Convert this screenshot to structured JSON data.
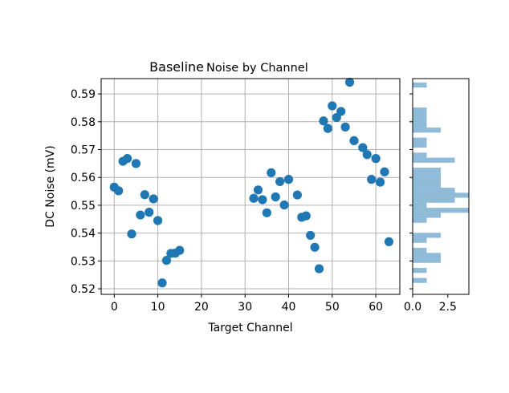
{
  "chart_data": [
    {
      "type": "scatter",
      "title": "Baseline",
      "subtitle": "Noise by Channel",
      "xlabel": "Target Channel",
      "ylabel": "DC Noise (mV)",
      "xlim": [
        -3,
        65.5
      ],
      "ylim": [
        0.518,
        0.5955
      ],
      "xticks": [
        0,
        10,
        20,
        30,
        40,
        50,
        60
      ],
      "yticks": [
        0.52,
        0.53,
        0.54,
        0.55,
        0.56,
        0.57,
        0.58,
        0.59
      ],
      "grid": true,
      "color": "#1f77b4",
      "x": [
        0,
        1,
        2,
        3,
        4,
        5,
        6,
        7,
        8,
        9,
        10,
        11,
        12,
        13,
        14,
        15,
        32,
        33,
        34,
        35,
        36,
        37,
        38,
        39,
        40,
        42,
        43,
        44,
        45,
        46,
        47,
        48,
        49,
        50,
        51,
        52,
        53,
        55,
        57,
        58,
        59,
        60,
        61,
        62,
        63,
        54
      ],
      "y": [
        0.5565,
        0.5552,
        0.5658,
        0.5668,
        0.5397,
        0.565,
        0.5465,
        0.5538,
        0.5475,
        0.5523,
        0.5445,
        0.5221,
        0.5302,
        0.5327,
        0.5328,
        0.5338,
        0.5525,
        0.5555,
        0.552,
        0.5473,
        0.5617,
        0.553,
        0.5585,
        0.5501,
        0.5593,
        0.5537,
        0.5457,
        0.5462,
        0.5392,
        0.5349,
        0.5272,
        0.5803,
        0.5776,
        0.5857,
        0.5815,
        0.5837,
        0.5781,
        0.5732,
        0.5707,
        0.5682,
        0.5593,
        0.5668,
        0.5583,
        0.562,
        0.5369,
        0.5942
      ]
    },
    {
      "type": "histogram",
      "orientation": "horizontal",
      "color": "#1f77b4",
      "alpha": 0.5,
      "xlim": [
        0,
        4
      ],
      "xticks": [
        0.0,
        2.5
      ],
      "xtick_labels": [
        "0.0",
        "2.5"
      ],
      "ylim": [
        0.518,
        0.5955
      ],
      "bins": [
        {
          "low": 0.5221,
          "high": 0.5239,
          "count": 1
        },
        {
          "low": 0.5257,
          "high": 0.5275,
          "count": 1
        },
        {
          "low": 0.5293,
          "high": 0.5329,
          "count": 2
        },
        {
          "low": 0.5329,
          "high": 0.5347,
          "count": 1
        },
        {
          "low": 0.5347,
          "high": 0.5365,
          "count": 0
        },
        {
          "low": 0.5365,
          "high": 0.5383,
          "count": 1
        },
        {
          "low": 0.5383,
          "high": 0.5401,
          "count": 2
        },
        {
          "low": 0.5437,
          "high": 0.5455,
          "count": 1
        },
        {
          "low": 0.5455,
          "high": 0.5473,
          "count": 2
        },
        {
          "low": 0.5473,
          "high": 0.5491,
          "count": 4
        },
        {
          "low": 0.5491,
          "high": 0.5509,
          "count": 1
        },
        {
          "low": 0.5509,
          "high": 0.5527,
          "count": 3
        },
        {
          "low": 0.5527,
          "high": 0.5545,
          "count": 4
        },
        {
          "low": 0.5545,
          "high": 0.5563,
          "count": 3
        },
        {
          "low": 0.5563,
          "high": 0.5581,
          "count": 2
        },
        {
          "low": 0.5581,
          "high": 0.5599,
          "count": 2
        },
        {
          "low": 0.5599,
          "high": 0.5617,
          "count": 2
        },
        {
          "low": 0.5617,
          "high": 0.5635,
          "count": 2
        },
        {
          "low": 0.5653,
          "high": 0.5671,
          "count": 3
        },
        {
          "low": 0.5671,
          "high": 0.5689,
          "count": 1
        },
        {
          "low": 0.5707,
          "high": 0.5725,
          "count": 1
        },
        {
          "low": 0.5725,
          "high": 0.5743,
          "count": 1
        },
        {
          "low": 0.5761,
          "high": 0.5779,
          "count": 2
        },
        {
          "low": 0.5779,
          "high": 0.5797,
          "count": 1
        },
        {
          "low": 0.5797,
          "high": 0.5815,
          "count": 1
        },
        {
          "low": 0.5815,
          "high": 0.5833,
          "count": 1
        },
        {
          "low": 0.5833,
          "high": 0.5851,
          "count": 1
        },
        {
          "low": 0.5923,
          "high": 0.5941,
          "count": 1
        }
      ]
    }
  ]
}
